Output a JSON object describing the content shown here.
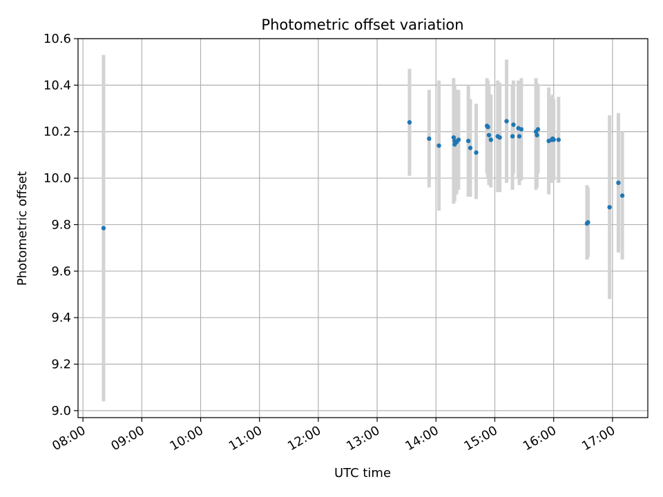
{
  "chart_data": {
    "type": "scatter",
    "title": "Photometric offset variation",
    "xlabel": "UTC time",
    "ylabel": "Photometric offset",
    "x_ticks": [
      "08:00",
      "09:00",
      "10:00",
      "11:00",
      "12:00",
      "13:00",
      "14:00",
      "15:00",
      "16:00",
      "17:00"
    ],
    "x_tick_hours": [
      8,
      9,
      10,
      11,
      12,
      13,
      14,
      15,
      16,
      17
    ],
    "y_ticks": [
      "9.0",
      "9.2",
      "9.4",
      "9.6",
      "9.8",
      "10.0",
      "10.2",
      "10.4",
      "10.6"
    ],
    "y_tick_values": [
      9.0,
      9.2,
      9.4,
      9.6,
      9.8,
      10.0,
      10.2,
      10.4,
      10.6
    ],
    "xlim": [
      "07:55",
      "17:36"
    ],
    "ylim": [
      8.97,
      10.6
    ],
    "grid": true,
    "point_color": "#1f77b4",
    "errorbar_color": "#d3d3d3",
    "points": [
      {
        "time": "08:21",
        "y": 9.785,
        "lo": 9.04,
        "hi": 10.53
      },
      {
        "time": "13:33",
        "y": 10.24,
        "lo": 10.01,
        "hi": 10.47
      },
      {
        "time": "13:53",
        "y": 10.17,
        "lo": 9.96,
        "hi": 10.38
      },
      {
        "time": "14:03",
        "y": 10.14,
        "lo": 9.86,
        "hi": 10.42
      },
      {
        "time": "14:18",
        "y": 10.175,
        "lo": 9.89,
        "hi": 10.43
      },
      {
        "time": "14:19",
        "y": 10.16,
        "lo": 9.92,
        "hi": 10.4
      },
      {
        "time": "14:19",
        "y": 10.145,
        "lo": 9.9,
        "hi": 10.39
      },
      {
        "time": "14:21",
        "y": 10.155,
        "lo": 9.93,
        "hi": 10.38
      },
      {
        "time": "14:23",
        "y": 10.165,
        "lo": 9.95,
        "hi": 10.38
      },
      {
        "time": "14:33",
        "y": 10.16,
        "lo": 9.92,
        "hi": 10.4
      },
      {
        "time": "14:35",
        "y": 10.13,
        "lo": 9.92,
        "hi": 10.34
      },
      {
        "time": "14:41",
        "y": 10.11,
        "lo": 9.91,
        "hi": 10.32
      },
      {
        "time": "14:52",
        "y": 10.225,
        "lo": 10.02,
        "hi": 10.43
      },
      {
        "time": "14:53",
        "y": 10.22,
        "lo": 10.0,
        "hi": 10.42
      },
      {
        "time": "14:54",
        "y": 10.185,
        "lo": 9.97,
        "hi": 10.4
      },
      {
        "time": "14:56",
        "y": 10.165,
        "lo": 9.96,
        "hi": 10.36
      },
      {
        "time": "15:03",
        "y": 10.18,
        "lo": 9.94,
        "hi": 10.42
      },
      {
        "time": "15:05",
        "y": 10.175,
        "lo": 9.94,
        "hi": 10.41
      },
      {
        "time": "15:12",
        "y": 10.245,
        "lo": 9.98,
        "hi": 10.51
      },
      {
        "time": "15:18",
        "y": 10.18,
        "lo": 9.95,
        "hi": 10.4
      },
      {
        "time": "15:19",
        "y": 10.23,
        "lo": 10.02,
        "hi": 10.42
      },
      {
        "time": "15:24",
        "y": 10.215,
        "lo": 10.0,
        "hi": 10.42
      },
      {
        "time": "15:25",
        "y": 10.18,
        "lo": 9.97,
        "hi": 10.39
      },
      {
        "time": "15:27",
        "y": 10.21,
        "lo": 9.99,
        "hi": 10.43
      },
      {
        "time": "15:42",
        "y": 10.2,
        "lo": 9.95,
        "hi": 10.43
      },
      {
        "time": "15:43",
        "y": 10.185,
        "lo": 9.96,
        "hi": 10.41
      },
      {
        "time": "15:44",
        "y": 10.21,
        "lo": 10.02,
        "hi": 10.4
      },
      {
        "time": "15:55",
        "y": 10.16,
        "lo": 9.93,
        "hi": 10.39
      },
      {
        "time": "15:58",
        "y": 10.165,
        "lo": 9.98,
        "hi": 10.35
      },
      {
        "time": "15:59",
        "y": 10.17,
        "lo": 9.98,
        "hi": 10.36
      },
      {
        "time": "16:00",
        "y": 10.165,
        "lo": 9.99,
        "hi": 10.34
      },
      {
        "time": "16:05",
        "y": 10.165,
        "lo": 9.98,
        "hi": 10.35
      },
      {
        "time": "16:34",
        "y": 9.805,
        "lo": 9.65,
        "hi": 9.97
      },
      {
        "time": "16:35",
        "y": 9.81,
        "lo": 9.66,
        "hi": 9.96
      },
      {
        "time": "16:57",
        "y": 9.875,
        "lo": 9.48,
        "hi": 10.27
      },
      {
        "time": "17:06",
        "y": 9.98,
        "lo": 9.68,
        "hi": 10.28
      },
      {
        "time": "17:10",
        "y": 9.925,
        "lo": 9.65,
        "hi": 10.2
      }
    ]
  }
}
